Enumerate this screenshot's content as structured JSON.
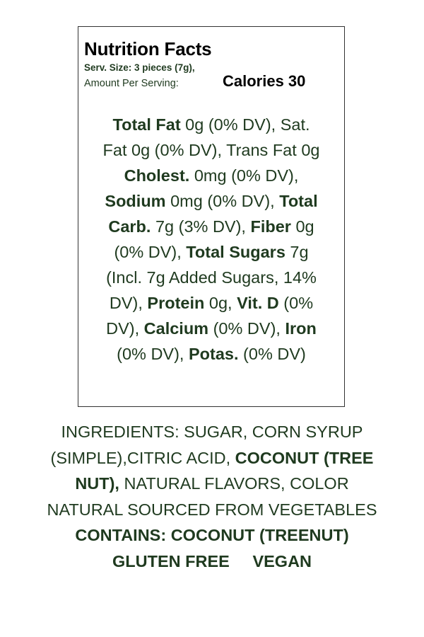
{
  "colors": {
    "text_green": "#1f3a1f",
    "title_black": "#000000",
    "border": "#333333"
  },
  "panel": {
    "title": "Nutrition Facts",
    "serving_size": "Serv. Size: 3 pieces (7g),",
    "amount_per_serving": "Amount Per Serving:",
    "calories": "Calories 30",
    "facts_lines": [
      [
        {
          "t": "Total Fat",
          "b": true
        },
        {
          "t": " 0g (0% DV), Sat."
        }
      ],
      [
        {
          "t": "Fat 0g (0% DV), Trans Fat 0g"
        }
      ],
      [
        {
          "t": "Cholest.",
          "b": true
        },
        {
          "t": " 0mg (0% DV),"
        }
      ],
      [
        {
          "t": "Sodium",
          "b": true
        },
        {
          "t": " 0mg (0% DV), "
        },
        {
          "t": "Total",
          "b": true
        }
      ],
      [
        {
          "t": "Carb.",
          "b": true
        },
        {
          "t": " 7g (3% DV), "
        },
        {
          "t": "Fiber",
          "b": true
        },
        {
          "t": " 0g"
        }
      ],
      [
        {
          "t": "(0% DV), "
        },
        {
          "t": "Total Sugars",
          "b": true
        },
        {
          "t": " 7g"
        }
      ],
      [
        {
          "t": "(Incl. 7g Added Sugars, 14%"
        }
      ],
      [
        {
          "t": "DV), "
        },
        {
          "t": "Protein",
          "b": true
        },
        {
          "t": " 0g, "
        },
        {
          "t": "Vit. D",
          "b": true
        },
        {
          "t": " (0%"
        }
      ],
      [
        {
          "t": "DV), "
        },
        {
          "t": "Calcium",
          "b": true
        },
        {
          "t": " (0% DV), "
        },
        {
          "t": "Iron",
          "b": true
        }
      ],
      [
        {
          "t": "(0% DV), "
        },
        {
          "t": "Potas.",
          "b": true
        },
        {
          "t": " (0% DV)"
        }
      ]
    ]
  },
  "ingredients_lines": [
    [
      {
        "t": "INGREDIENTS: SUGAR, CORN SYRUP"
      }
    ],
    [
      {
        "t": "(SIMPLE),CITRIC ACID, "
      },
      {
        "t": "COCONUT (TREE",
        "b": true
      }
    ],
    [
      {
        "t": "NUT),",
        "b": true
      },
      {
        "t": " NATURAL FLAVORS, COLOR"
      }
    ],
    [
      {
        "t": "NATURAL SOURCED FROM VEGETABLES"
      }
    ],
    [
      {
        "t": "CONTAINS: COCONUT (TREENUT)",
        "b": true
      }
    ],
    [
      {
        "t": "GLUTEN FREE     VEGAN",
        "b": true
      }
    ]
  ]
}
